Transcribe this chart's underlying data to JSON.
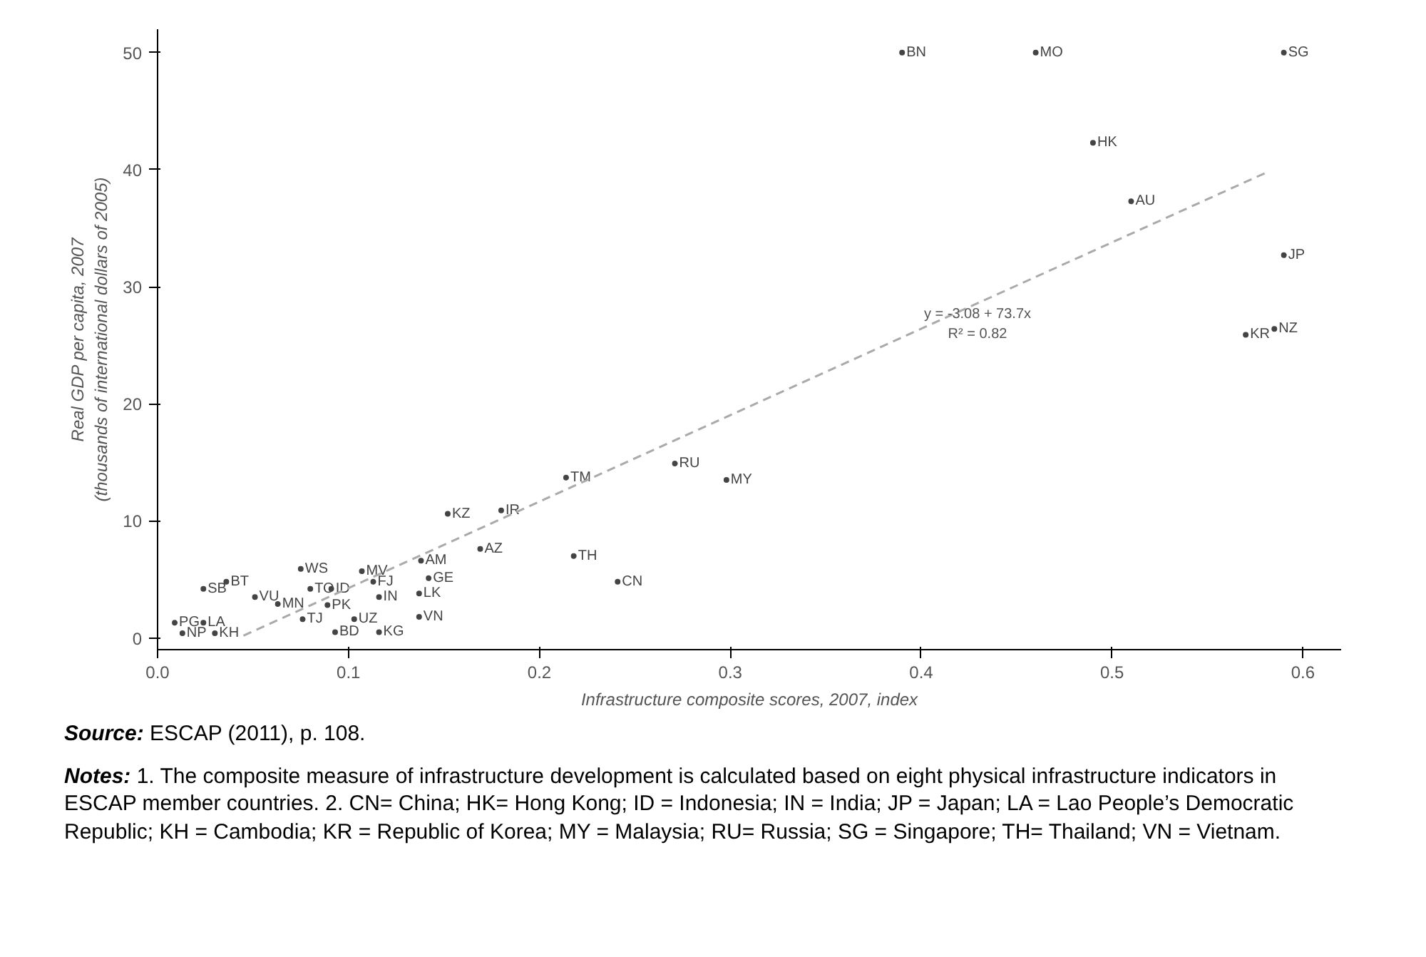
{
  "chart_data": {
    "type": "scatter",
    "xlabel": "Infrastructure composite scores, 2007, index",
    "ylabel": "Real GDP per capita, 2007\n(thousands of international dollars of 2005)",
    "xlim": [
      0,
      0.62
    ],
    "xticks": [
      {
        "value": 0,
        "label": "0.0"
      },
      0.1,
      0.2,
      0.3,
      0.4,
      0.5,
      {
        "value": 0.6,
        "label": "0.6"
      }
    ],
    "ylim": [
      -1,
      52
    ],
    "yticks": [
      0,
      10,
      20,
      30,
      40,
      50
    ],
    "grid": false,
    "series": [
      {
        "color": "#444444",
        "marker": "circle",
        "x": [
          0.39,
          0.46,
          0.59,
          0.49,
          0.51,
          0.59,
          0.57,
          0.585,
          0.271,
          0.298,
          0.214,
          0.152,
          0.18,
          0.169,
          0.218,
          0.241,
          0.138,
          0.142,
          0.137,
          0.137,
          0.107,
          0.113,
          0.075,
          0.08,
          0.091,
          0.036,
          0.024,
          0.051,
          0.063,
          0.089,
          0.116,
          0.076,
          0.103,
          0.093,
          0.116,
          0.009,
          0.024,
          0.013,
          0.03
        ],
        "values": [
          50,
          50,
          50,
          42.3,
          37.3,
          32.7,
          25.9,
          26.4,
          14.9,
          13.5,
          13.7,
          10.6,
          10.9,
          7.6,
          7.0,
          4.8,
          6.6,
          5.1,
          3.8,
          1.8,
          5.7,
          4.8,
          5.9,
          4.2,
          4.2,
          4.8,
          4.2,
          3.5,
          2.9,
          2.8,
          3.5,
          1.6,
          1.6,
          0.5,
          0.5,
          1.3,
          1.3,
          0.4,
          0.4
        ],
        "value_labels": [
          "BN",
          "MO",
          "SG",
          "HK",
          "AU",
          "JP",
          "KR",
          "NZ",
          "RU",
          "MY",
          "TM",
          "KZ",
          "IR",
          "AZ",
          "TH",
          "CN",
          "AM",
          "GE",
          "LK",
          "VN",
          "MV",
          "FJ",
          "WS",
          "TO",
          "ID",
          "BT",
          "SB",
          "VU",
          "MN",
          "PK",
          "IN",
          "TJ",
          "UZ",
          "BD",
          "KG",
          "PG",
          "LA",
          "NP",
          "KH"
        ]
      },
      {
        "type": "line",
        "color": "#aaaaaa",
        "line_style": "dashed",
        "marker": "none",
        "x": [
          0.045,
          0.58
        ],
        "values": [
          0.2,
          39.7
        ]
      }
    ],
    "annotations": [
      "y = -3.08 + 73.7x",
      "R² = 0.82",
      "Source: ESCAP (2011), p. 108.",
      "Notes: 1. The composite measure of infrastructure development is calculated based on eight physical infrastructure indicators in ESCAP member countries. 2. CN= China; HK= Hong Kong; ID = Indonesia;  IN = India; JP = Japan; LA = Lao People’s Democratic Republic; KH = Cambodia; KR = Republic of Korea; MY = Malaysia; RU= Russia; SG = Singapore; TH= Thailand; VN = Vietnam."
    ]
  }
}
